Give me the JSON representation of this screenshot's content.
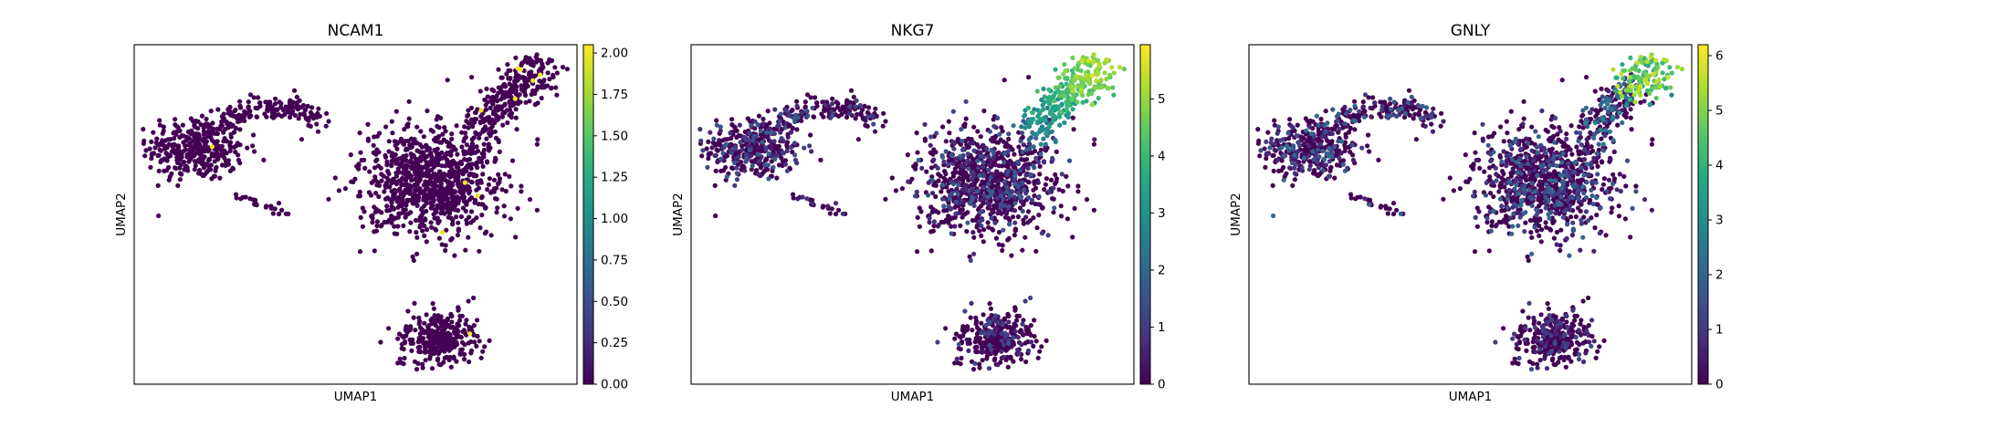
{
  "chart_data": [
    {
      "type": "scatter",
      "title": "NCAM1",
      "xlabel": "UMAP1",
      "ylabel": "UMAP2",
      "colormap": "viridis",
      "xticks": [],
      "yticks": [],
      "colorbar": {
        "min": 0,
        "max": 2.05,
        "ticks": [
          "0.00",
          "0.25",
          "0.50",
          "0.75",
          "1.00",
          "1.25",
          "1.50",
          "1.75",
          "2.00"
        ],
        "tick_values": [
          0,
          0.25,
          0.5,
          0.75,
          1.0,
          1.25,
          1.5,
          1.75,
          2.0
        ]
      },
      "expression_profile": "sparse_high"
    },
    {
      "type": "scatter",
      "title": "NKG7",
      "xlabel": "UMAP1",
      "ylabel": "UMAP2",
      "colormap": "viridis",
      "xticks": [],
      "yticks": [],
      "colorbar": {
        "min": 0,
        "max": 5.95,
        "ticks": [
          "0",
          "1",
          "2",
          "3",
          "4",
          "5"
        ],
        "tick_values": [
          0,
          1,
          2,
          3,
          4,
          5
        ]
      },
      "expression_profile": "gradient_to_top_right"
    },
    {
      "type": "scatter",
      "title": "GNLY",
      "xlabel": "UMAP1",
      "ylabel": "UMAP2",
      "colormap": "viridis",
      "xticks": [],
      "yticks": [],
      "colorbar": {
        "min": 0,
        "max": 6.2,
        "ticks": [
          "0",
          "1",
          "2",
          "3",
          "4",
          "5",
          "6"
        ],
        "tick_values": [
          0,
          1,
          2,
          3,
          4,
          5,
          6
        ]
      },
      "expression_profile": "top_right_cluster"
    }
  ],
  "colors": {
    "viridis_low": "#440154",
    "viridis_mid": "#21918c",
    "viridis_high": "#fde725"
  }
}
